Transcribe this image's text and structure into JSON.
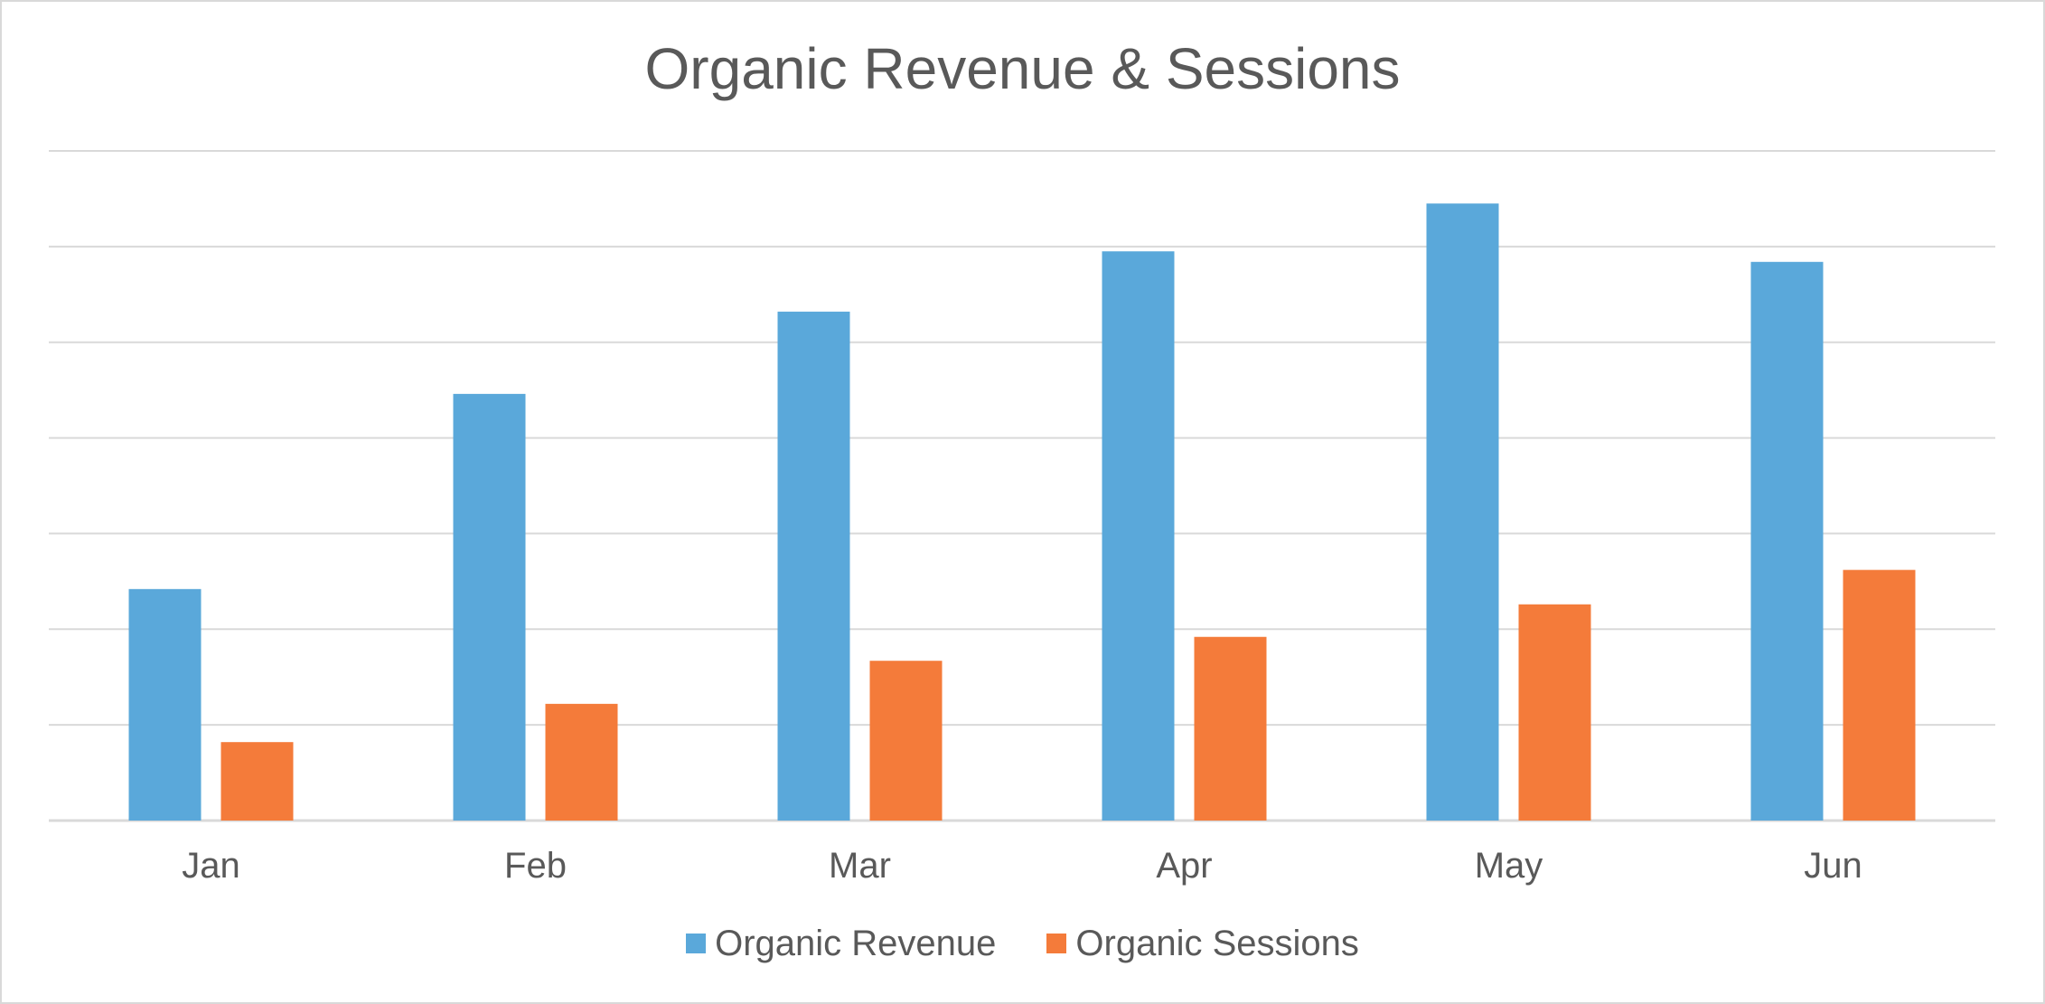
{
  "chart_data": {
    "type": "bar",
    "title": "Organic Revenue & Sessions",
    "xlabel": "",
    "ylabel": "",
    "categories": [
      "Jan",
      "Feb",
      "Mar",
      "Apr",
      "May",
      "Jun"
    ],
    "series": [
      {
        "name": "Organic Revenue",
        "color": "#5aa8da",
        "values": [
          2.42,
          4.46,
          5.32,
          5.95,
          6.45,
          5.84
        ]
      },
      {
        "name": "Organic Sessions",
        "color": "#f47b3a",
        "values": [
          0.82,
          1.22,
          1.67,
          1.92,
          2.26,
          2.62
        ]
      }
    ],
    "ylim": [
      0,
      7
    ],
    "grid": true,
    "y_ticks_shown": false,
    "legend": "bottom",
    "gridline_color": "#d9d9d9"
  }
}
